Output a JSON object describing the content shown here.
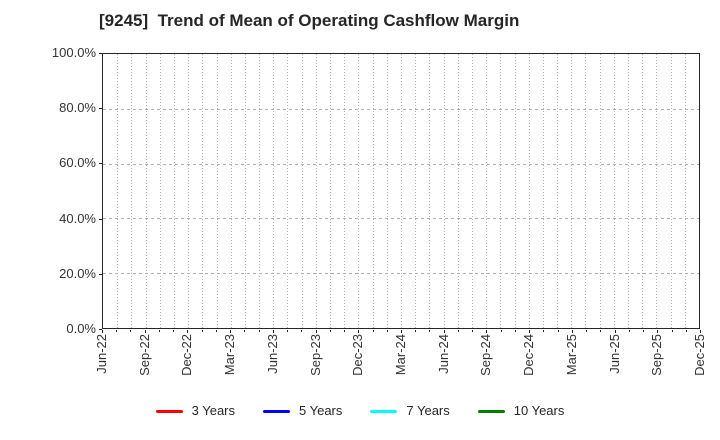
{
  "chart_data": {
    "type": "line",
    "title": "[9245]  Trend of Mean of Operating Cashflow Margin",
    "x_tick_labels": [
      "Jun-22",
      "Sep-22",
      "Dec-22",
      "Mar-23",
      "Jun-23",
      "Sep-23",
      "Dec-23",
      "Mar-24",
      "Jun-24",
      "Sep-24",
      "Dec-24",
      "Mar-25",
      "Jun-25",
      "Sep-25",
      "Dec-25"
    ],
    "x_minor_per_major": 3,
    "y_ticks": [
      {
        "value": 0,
        "label": "0.0%"
      },
      {
        "value": 20,
        "label": "20.0%"
      },
      {
        "value": 40,
        "label": "40.0%"
      },
      {
        "value": 60,
        "label": "60.0%"
      },
      {
        "value": 80,
        "label": "80.0%"
      },
      {
        "value": 100,
        "label": "100.0%"
      }
    ],
    "ylim": [
      0,
      100
    ],
    "grid": true,
    "legend_position": "bottom",
    "plot_empty": true,
    "series": [
      {
        "name": "3 Years",
        "color": "#ff0000",
        "values": []
      },
      {
        "name": "5 Years",
        "color": "#0000ff",
        "values": []
      },
      {
        "name": "7 Years",
        "color": "#00ffff",
        "values": []
      },
      {
        "name": "10 Years",
        "color": "#008000",
        "values": []
      }
    ]
  }
}
